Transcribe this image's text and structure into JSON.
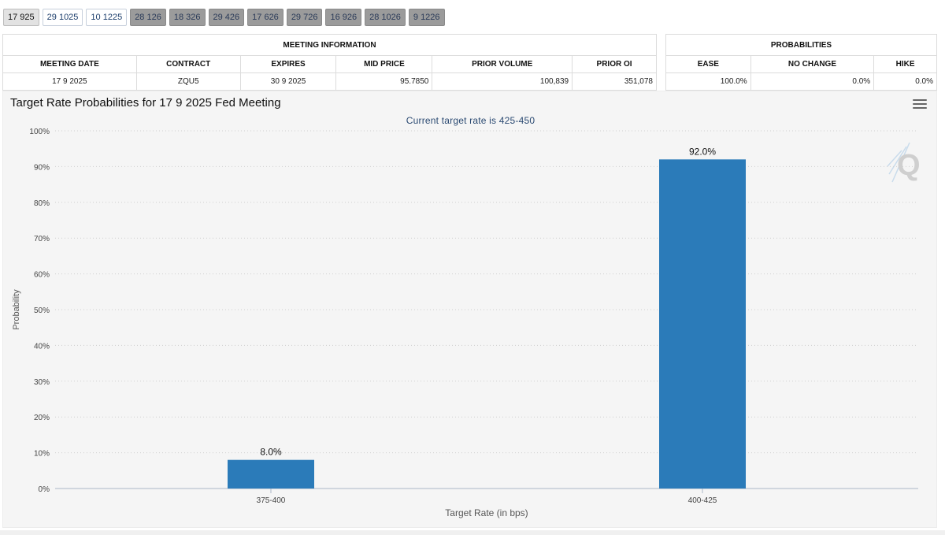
{
  "tabs": [
    {
      "label": "17 925",
      "state": "selected"
    },
    {
      "label": "29 1025",
      "state": "light"
    },
    {
      "label": "10 1225",
      "state": "light"
    },
    {
      "label": "28 126",
      "state": "dark"
    },
    {
      "label": "18 326",
      "state": "dark"
    },
    {
      "label": "29 426",
      "state": "dark"
    },
    {
      "label": "17 626",
      "state": "dark"
    },
    {
      "label": "29 726",
      "state": "dark"
    },
    {
      "label": "16 926",
      "state": "dark"
    },
    {
      "label": "28 1026",
      "state": "dark"
    },
    {
      "label": "9 1226",
      "state": "dark"
    }
  ],
  "meeting_info": {
    "group_header": "MEETING INFORMATION",
    "headers": [
      "MEETING DATE",
      "CONTRACT",
      "EXPIRES",
      "MID PRICE",
      "PRIOR VOLUME",
      "PRIOR OI"
    ],
    "row": [
      "17 9 2025",
      "ZQU5",
      "30 9 2025",
      "95.7850",
      "100,839",
      "351,078"
    ]
  },
  "probabilities": {
    "group_header": "PROBABILITIES",
    "headers": [
      "EASE",
      "NO CHANGE",
      "HIKE"
    ],
    "row": [
      "100.0%",
      "0.0%",
      "0.0%"
    ]
  },
  "chart": {
    "title": "Target Rate Probabilities for 17 9 2025 Fed Meeting",
    "subtitle": "Current target rate is 425-450",
    "menu_icon": "hamburger-menu-icon",
    "watermark_icon": "q-logo-icon"
  },
  "colors": {
    "bar": "#2b7bb9",
    "grid": "#cfcfcf",
    "plot_bg": "#f5f5f5"
  },
  "chart_data": {
    "type": "bar",
    "title": "Target Rate Probabilities for 17 9 2025 Fed Meeting",
    "subtitle": "Current target rate is 425-450",
    "categories": [
      "375-400",
      "400-425"
    ],
    "values": [
      8.0,
      92.0
    ],
    "data_labels": [
      "8.0%",
      "92.0%"
    ],
    "xlabel": "Target Rate (in bps)",
    "ylabel": "Probability",
    "ylim": [
      0,
      100
    ],
    "yticks": [
      "0%",
      "10%",
      "20%",
      "30%",
      "40%",
      "50%",
      "60%",
      "70%",
      "80%",
      "90%",
      "100%"
    ],
    "grid": true,
    "legend": "none"
  }
}
